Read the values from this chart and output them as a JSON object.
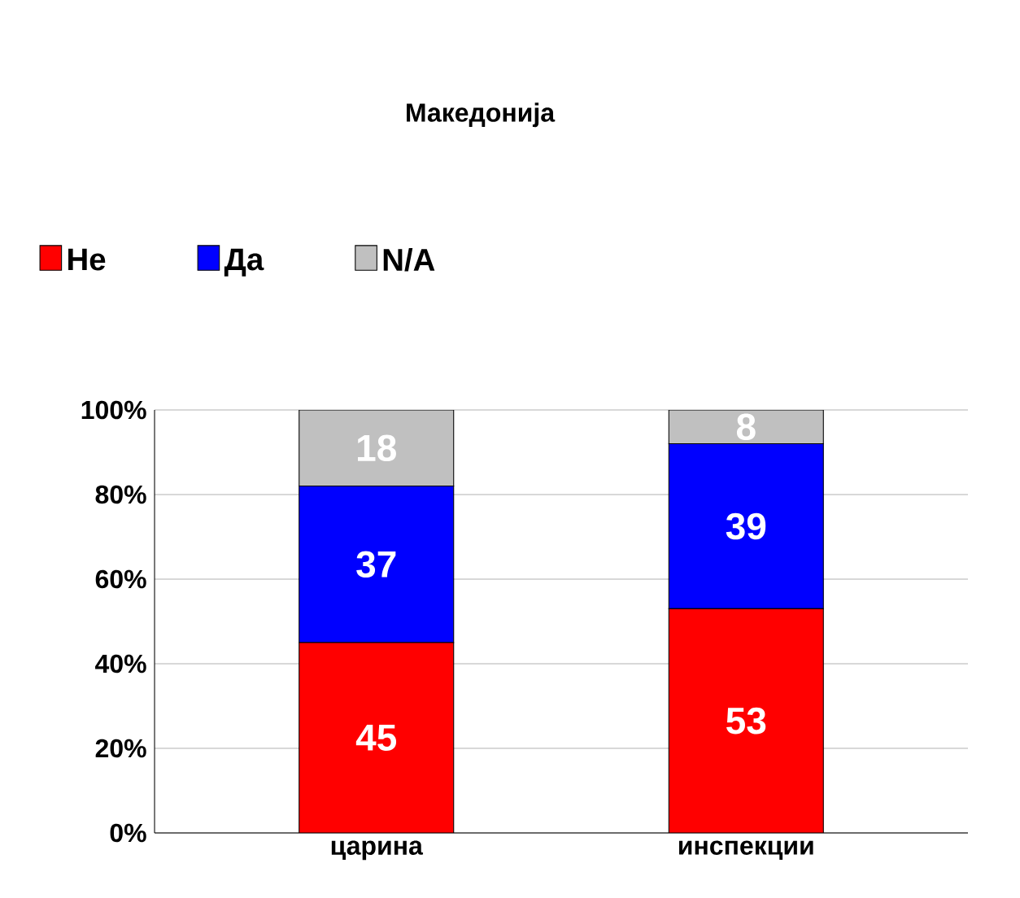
{
  "chart_data": {
    "type": "bar",
    "title": "Македонија",
    "stacked": true,
    "data_labels": true,
    "grid": "y",
    "legend": "top left",
    "categories": [
      "царина",
      "инспекции"
    ],
    "series": [
      {
        "name": "Не",
        "color": "#ff0000",
        "values": [
          45,
          53
        ]
      },
      {
        "name": "Да",
        "color": "#0000ff",
        "values": [
          37,
          39
        ]
      },
      {
        "name": "N/A",
        "color": "#c0c0c0",
        "values": [
          18,
          8
        ]
      }
    ],
    "ylim": [
      0,
      100
    ],
    "yticks": [
      {
        "value": 0,
        "label": "0%"
      },
      {
        "value": 20,
        "label": "20%"
      },
      {
        "value": 40,
        "label": "40%"
      },
      {
        "value": 60,
        "label": "60%"
      },
      {
        "value": 80,
        "label": "80%"
      },
      {
        "value": 100,
        "label": "100%"
      }
    ]
  }
}
